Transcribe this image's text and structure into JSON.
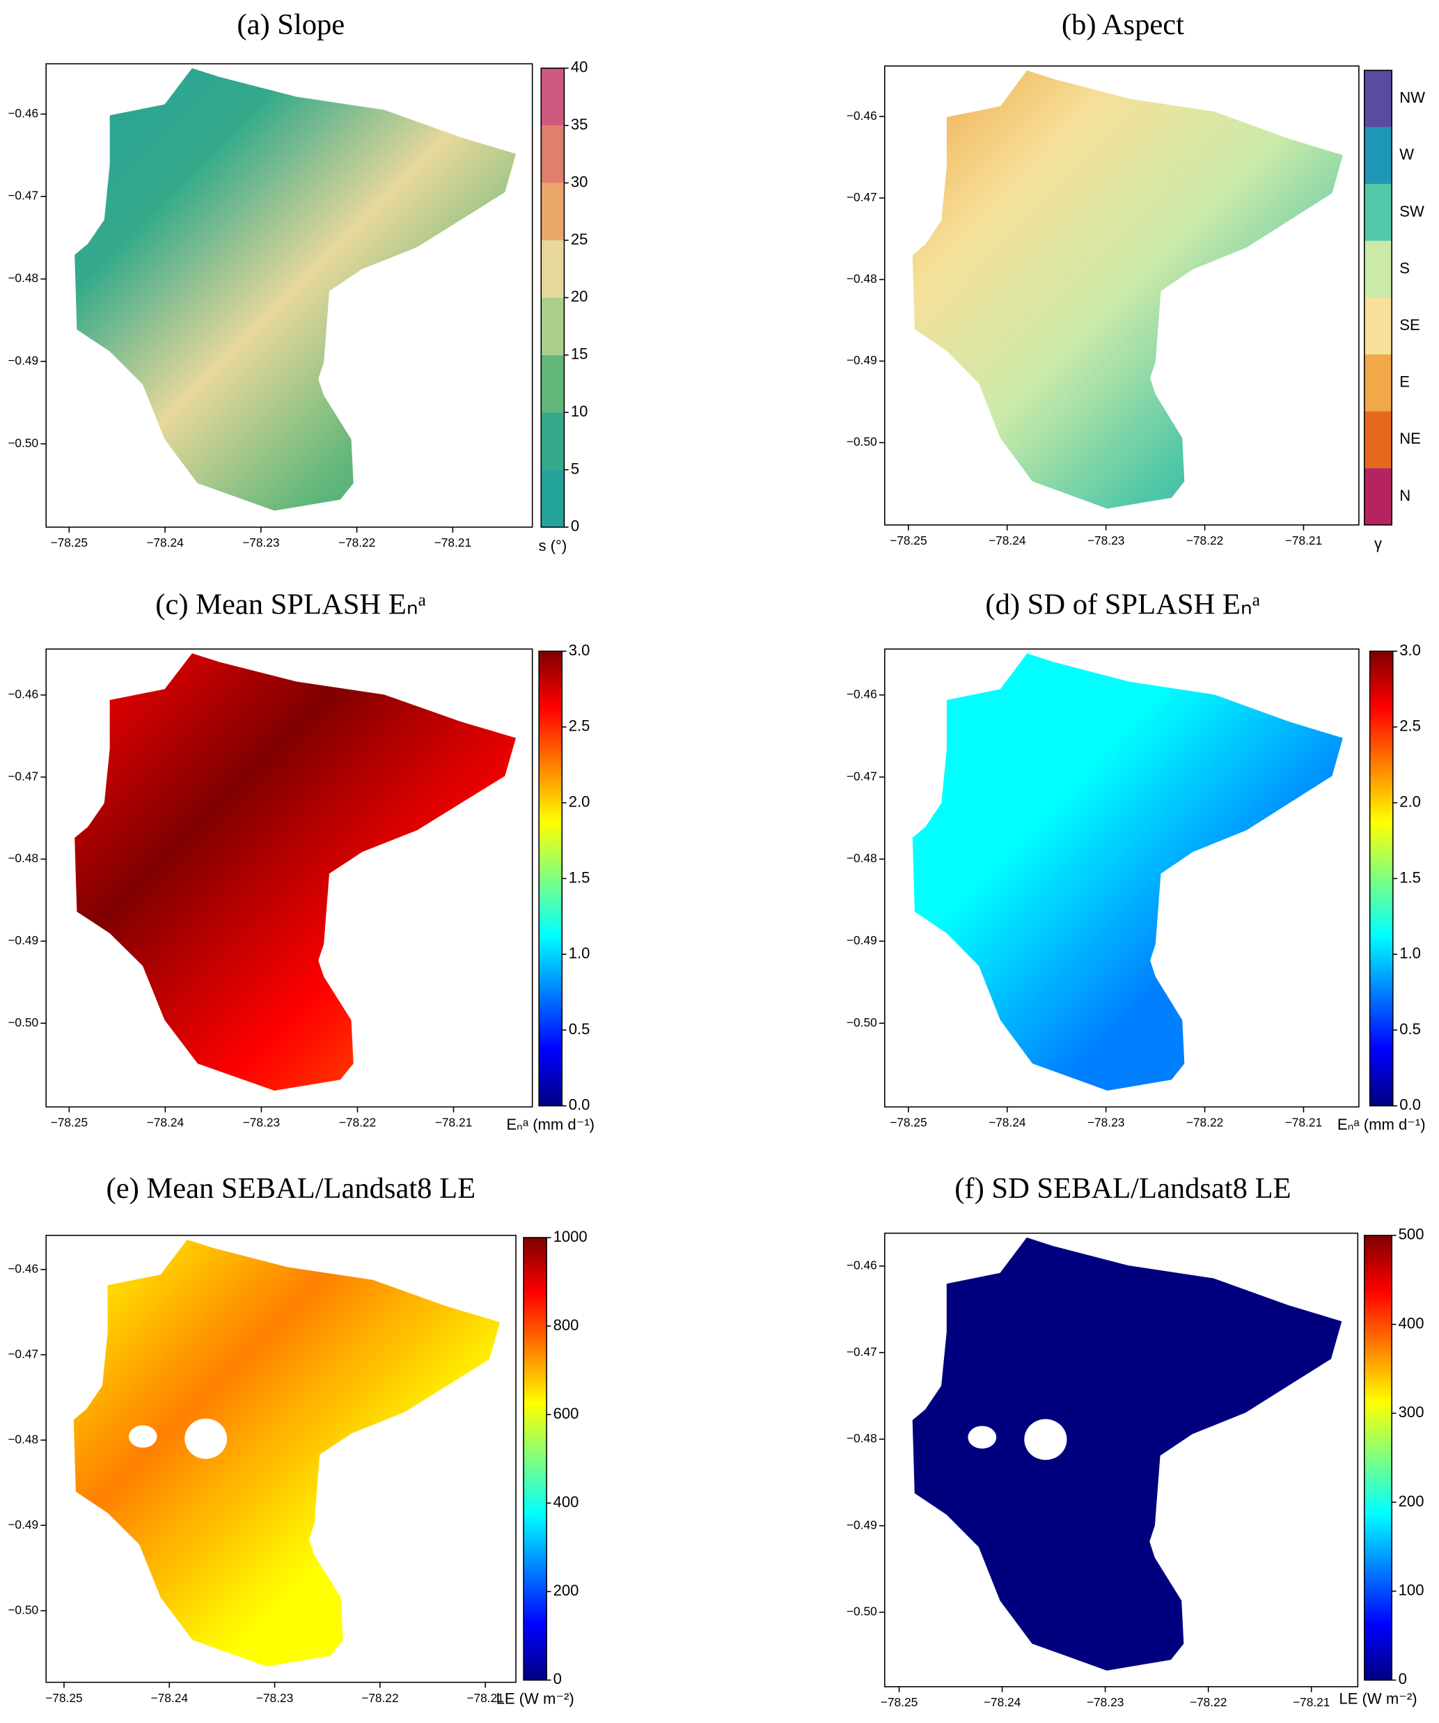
{
  "chart_data": [
    {
      "type": "map",
      "title": "(a) Slope",
      "xlim": [
        -78.2524,
        -78.2017
      ],
      "xticks": [
        {
          "value": -78.25,
          "label": "−78.25"
        },
        {
          "value": -78.24,
          "label": "−78.24"
        },
        {
          "value": -78.23,
          "label": "−78.23"
        },
        {
          "value": -78.22,
          "label": "−78.22"
        },
        {
          "value": -78.21,
          "label": "−78.21"
        }
      ],
      "ylim": [
        -0.5101,
        -0.4539
      ],
      "yticks": [
        {
          "value": -0.46,
          "label": "−0.46"
        },
        {
          "value": -0.47,
          "label": "−0.47"
        },
        {
          "value": -0.48,
          "label": "−0.48"
        },
        {
          "value": -0.49,
          "label": "−0.49"
        },
        {
          "value": -0.5,
          "label": "−0.50"
        }
      ],
      "colorbar": {
        "label": "s (°)",
        "lim": [
          0,
          40
        ],
        "ticks": [
          0,
          5,
          10,
          15,
          20,
          25,
          30,
          35,
          40
        ],
        "discrete": true,
        "colors": [
          "#23a39a",
          "#36a98b",
          "#62b67a",
          "#a9cf8a",
          "#e7d89a",
          "#eba76a",
          "#df7f6c",
          "#cf5a80"
        ]
      }
    },
    {
      "type": "map",
      "title": "(b) Aspect",
      "xlim": [
        -78.2524,
        -78.2044
      ],
      "xticks": [
        {
          "value": -78.25,
          "label": "−78.25"
        },
        {
          "value": -78.24,
          "label": "−78.24"
        },
        {
          "value": -78.23,
          "label": "−78.23"
        },
        {
          "value": -78.22,
          "label": "−78.22"
        },
        {
          "value": -78.21,
          "label": "−78.21"
        }
      ],
      "ylim": [
        -0.5101,
        -0.4538
      ],
      "yticks": [
        {
          "value": -0.46,
          "label": "−0.46"
        },
        {
          "value": -0.47,
          "label": "−0.47"
        },
        {
          "value": -0.48,
          "label": "−0.48"
        },
        {
          "value": -0.49,
          "label": "−0.49"
        },
        {
          "value": -0.5,
          "label": "−0.50"
        }
      ],
      "colorbar": {
        "label": "γ",
        "categories": [
          "N",
          "NE",
          "E",
          "SE",
          "S",
          "SW",
          "W",
          "NW"
        ],
        "discrete": true,
        "colors": [
          "#b5245e",
          "#e5691d",
          "#f0a848",
          "#f6e09a",
          "#cbeaa8",
          "#52c8a8",
          "#1e98b4",
          "#5a4aa0"
        ]
      }
    },
    {
      "type": "map",
      "title": "(c) Mean SPLASH Eₙᵃ",
      "xlim": [
        -78.2524,
        -78.2018
      ],
      "xticks": [
        {
          "value": -78.25,
          "label": "−78.25"
        },
        {
          "value": -78.24,
          "label": "−78.24"
        },
        {
          "value": -78.23,
          "label": "−78.23"
        },
        {
          "value": -78.22,
          "label": "−78.22"
        },
        {
          "value": -78.21,
          "label": "−78.21"
        }
      ],
      "ylim": [
        -0.5102,
        -0.4544
      ],
      "yticks": [
        {
          "value": -0.46,
          "label": "−0.46"
        },
        {
          "value": -0.47,
          "label": "−0.47"
        },
        {
          "value": -0.48,
          "label": "−0.48"
        },
        {
          "value": -0.49,
          "label": "−0.49"
        },
        {
          "value": -0.5,
          "label": "−0.50"
        }
      ],
      "colorbar": {
        "label": "Eₙᵃ (mm d⁻¹)",
        "lim": [
          0,
          3
        ],
        "ticks": [
          {
            "value": 0,
            "label": "0.0"
          },
          {
            "value": 0.5,
            "label": "0.5"
          },
          {
            "value": 1,
            "label": "1.0"
          },
          {
            "value": 1.5,
            "label": "1.5"
          },
          {
            "value": 2,
            "label": "2.0"
          },
          {
            "value": 2.5,
            "label": "2.5"
          },
          {
            "value": 3,
            "label": "3.0"
          }
        ],
        "discrete": false,
        "colors": [
          "#00007f",
          "#0000ff",
          "#007fff",
          "#00ffff",
          "#7fff7f",
          "#ffff00",
          "#ff7f00",
          "#ff0000",
          "#7f0000"
        ]
      }
    },
    {
      "type": "map",
      "title": "(d) SD of SPLASH Eₙᵃ",
      "xlim": [
        -78.2524,
        -78.2044
      ],
      "xticks": [
        {
          "value": -78.25,
          "label": "−78.25"
        },
        {
          "value": -78.24,
          "label": "−78.24"
        },
        {
          "value": -78.23,
          "label": "−78.23"
        },
        {
          "value": -78.22,
          "label": "−78.22"
        },
        {
          "value": -78.21,
          "label": "−78.21"
        }
      ],
      "ylim": [
        -0.5102,
        -0.4544
      ],
      "yticks": [
        {
          "value": -0.46,
          "label": "−0.46"
        },
        {
          "value": -0.47,
          "label": "−0.47"
        },
        {
          "value": -0.48,
          "label": "−0.48"
        },
        {
          "value": -0.49,
          "label": "−0.49"
        },
        {
          "value": -0.5,
          "label": "−0.50"
        }
      ],
      "colorbar": {
        "label": "Eₙᵃ (mm d⁻¹)",
        "lim": [
          0,
          3
        ],
        "ticks": [
          {
            "value": 0,
            "label": "0.0"
          },
          {
            "value": 0.5,
            "label": "0.5"
          },
          {
            "value": 1,
            "label": "1.0"
          },
          {
            "value": 1.5,
            "label": "1.5"
          },
          {
            "value": 2,
            "label": "2.0"
          },
          {
            "value": 2.5,
            "label": "2.5"
          },
          {
            "value": 3,
            "label": "3.0"
          }
        ],
        "discrete": false,
        "colors": [
          "#00007f",
          "#0000ff",
          "#007fff",
          "#00ffff",
          "#7fff7f",
          "#ffff00",
          "#ff7f00",
          "#ff0000",
          "#7f0000"
        ]
      }
    },
    {
      "type": "map",
      "title": "(e) Mean SEBAL/Landsat8 LE",
      "xlim": [
        -78.2517,
        -78.2071
      ],
      "xticks": [
        {
          "value": -78.25,
          "label": "−78.25"
        },
        {
          "value": -78.24,
          "label": "−78.24"
        },
        {
          "value": -78.23,
          "label": "−78.23"
        },
        {
          "value": -78.22,
          "label": "−78.22"
        },
        {
          "value": -78.21,
          "label": "−78.21"
        }
      ],
      "ylim": [
        -0.5084,
        -0.456
      ],
      "yticks": [
        {
          "value": -0.46,
          "label": "−0.46"
        },
        {
          "value": -0.47,
          "label": "−0.47"
        },
        {
          "value": -0.48,
          "label": "−0.48"
        },
        {
          "value": -0.49,
          "label": "−0.49"
        },
        {
          "value": -0.5,
          "label": "−0.50"
        }
      ],
      "colorbar": {
        "label": "LE (W m⁻²)",
        "lim": [
          0,
          1000
        ],
        "ticks": [
          0,
          200,
          400,
          600,
          800,
          1000
        ],
        "discrete": false,
        "colors": [
          "#00007f",
          "#0000ff",
          "#007fff",
          "#00ffff",
          "#7fff7f",
          "#ffff00",
          "#ff7f00",
          "#ff0000",
          "#7f0000"
        ]
      }
    },
    {
      "type": "map",
      "title": "(f) SD SEBAL/Landsat8 LE",
      "xlim": [
        -78.2514,
        -78.2055
      ],
      "xticks": [
        {
          "value": -78.25,
          "label": "−78.25"
        },
        {
          "value": -78.24,
          "label": "−78.24"
        },
        {
          "value": -78.23,
          "label": "−78.23"
        },
        {
          "value": -78.22,
          "label": "−78.22"
        },
        {
          "value": -78.21,
          "label": "−78.21"
        }
      ],
      "ylim": [
        -0.5086,
        -0.4562
      ],
      "yticks": [
        {
          "value": -0.46,
          "label": "−0.46"
        },
        {
          "value": -0.47,
          "label": "−0.47"
        },
        {
          "value": -0.48,
          "label": "−0.48"
        },
        {
          "value": -0.49,
          "label": "−0.49"
        },
        {
          "value": -0.5,
          "label": "−0.50"
        }
      ],
      "colorbar": {
        "label": "LE (W m⁻²)",
        "lim": [
          0,
          500
        ],
        "ticks": [
          0,
          100,
          200,
          300,
          400,
          500
        ],
        "discrete": false,
        "colors": [
          "#00007f",
          "#0000ff",
          "#007fff",
          "#00ffff",
          "#7fff7f",
          "#ffff00",
          "#ff7f00",
          "#ff0000",
          "#7f0000"
        ]
      }
    }
  ]
}
